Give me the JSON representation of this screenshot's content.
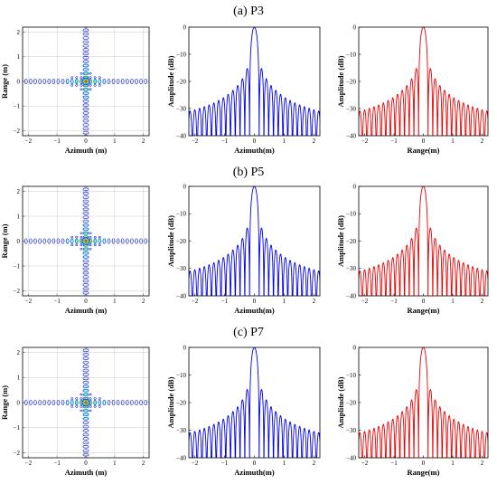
{
  "rows": [
    {
      "title": "(a) P3"
    },
    {
      "title": "(b) P5"
    },
    {
      "title": "(c) P7"
    }
  ],
  "chart_data": [
    {
      "type": "heatmap",
      "panel": "a-contour",
      "xlabel": "Azimuth (m)",
      "ylabel": "Range (m)",
      "xlim": [
        -2.2,
        2.2
      ],
      "ylim": [
        -2.2,
        2.2
      ],
      "xticks": [
        -2,
        -1,
        0,
        1,
        2
      ],
      "yticks": [
        -2,
        -1,
        0,
        1,
        2
      ],
      "grid": true,
      "colors": [
        "#1e2dd2",
        "#13b6f0",
        "#35e07a",
        "#f0c020",
        "#d02010"
      ]
    },
    {
      "type": "line",
      "panel": "a-azimuth",
      "xlabel": "Azimuth(m)",
      "ylabel": "Amplitude (dB)",
      "xlim": [
        -2.2,
        2.2
      ],
      "ylim": [
        -40,
        0
      ],
      "xticks": [
        -2,
        -1,
        0,
        1,
        2
      ],
      "yticks": [
        0,
        -10,
        -20,
        -30,
        -40
      ],
      "series": [
        {
          "color": "#0000ee",
          "mainlobe_width": 0.16,
          "sidelobe_peaks_db": [
            -13,
            -17.5,
            -20.5,
            -22.5,
            -24,
            -25.5,
            -26.5,
            -27.5,
            -28.3,
            -29,
            -29.6,
            -30.2,
            -30.7,
            -31.1
          ]
        }
      ]
    },
    {
      "type": "line",
      "panel": "a-range",
      "xlabel": "Range(m)",
      "ylabel": "Amplitude (dB)",
      "xlim": [
        -2.2,
        2.2
      ],
      "ylim": [
        -40,
        0
      ],
      "xticks": [
        -2,
        -1,
        0,
        1,
        2
      ],
      "yticks": [
        0,
        -10,
        -20,
        -30,
        -40
      ],
      "series": [
        {
          "color": "#ee0000",
          "mainlobe_width": 0.16,
          "sidelobe_peaks_db": [
            -13,
            -17.5,
            -20.5,
            -22.5,
            -24,
            -25.5,
            -26.5,
            -27.5,
            -28.3,
            -29,
            -29.6,
            -30.2,
            -30.7,
            -31.1
          ]
        }
      ]
    },
    {
      "type": "heatmap",
      "panel": "b-contour",
      "xlabel": "Azimuth (m)",
      "ylabel": "Range (m)",
      "xlim": [
        -2.2,
        2.2
      ],
      "ylim": [
        -2.2,
        2.2
      ],
      "xticks": [
        -2,
        -1,
        0,
        1,
        2
      ],
      "yticks": [
        -2,
        -1,
        0,
        1,
        2
      ],
      "grid": true,
      "colors": [
        "#1e2dd2",
        "#13b6f0",
        "#35e07a",
        "#f0c020",
        "#d02010"
      ]
    },
    {
      "type": "line",
      "panel": "b-azimuth",
      "xlabel": "Azimuth(m)",
      "ylabel": "Amplitude (dB)",
      "xlim": [
        -2.2,
        2.2
      ],
      "ylim": [
        -40,
        0
      ],
      "xticks": [
        -2,
        -1,
        0,
        1,
        2
      ],
      "yticks": [
        0,
        -10,
        -20,
        -30,
        -40
      ],
      "series": [
        {
          "color": "#0000ee",
          "mainlobe_width": 0.16,
          "sidelobe_peaks_db": [
            -13,
            -17.5,
            -20.5,
            -22.5,
            -24,
            -25.5,
            -26.5,
            -27.5,
            -28.3,
            -29,
            -29.6,
            -30.2,
            -30.7,
            -31.1
          ]
        }
      ]
    },
    {
      "type": "line",
      "panel": "b-range",
      "xlabel": "Range(m)",
      "ylabel": "Amplitude (dB)",
      "xlim": [
        -2.2,
        2.2
      ],
      "ylim": [
        -40,
        0
      ],
      "xticks": [
        -2,
        -1,
        0,
        1,
        2
      ],
      "yticks": [
        0,
        -10,
        -20,
        -30,
        -40
      ],
      "series": [
        {
          "color": "#ee0000",
          "mainlobe_width": 0.16,
          "sidelobe_peaks_db": [
            -13,
            -17.5,
            -20.5,
            -22.5,
            -24,
            -25.5,
            -26.5,
            -27.5,
            -28.3,
            -29,
            -29.6,
            -30.2,
            -30.7,
            -31.1
          ]
        }
      ]
    },
    {
      "type": "heatmap",
      "panel": "c-contour",
      "xlabel": "Azimuth (m)",
      "ylabel": "Range (m)",
      "xlim": [
        -2.2,
        2.2
      ],
      "ylim": [
        -2.2,
        2.2
      ],
      "xticks": [
        -2,
        -1,
        0,
        1,
        2
      ],
      "yticks": [
        -2,
        -1,
        0,
        1,
        2
      ],
      "grid": true,
      "colors": [
        "#1e2dd2",
        "#13b6f0",
        "#35e07a",
        "#f0c020",
        "#d02010"
      ]
    },
    {
      "type": "line",
      "panel": "c-azimuth",
      "xlabel": "Azimuth(m)",
      "ylabel": "Amplitude (dB)",
      "xlim": [
        -2.2,
        2.2
      ],
      "ylim": [
        -40,
        0
      ],
      "xticks": [
        -2,
        -1,
        0,
        1,
        2
      ],
      "yticks": [
        0,
        -10,
        -20,
        -30,
        -40
      ],
      "series": [
        {
          "color": "#0000ee",
          "mainlobe_width": 0.16,
          "sidelobe_peaks_db": [
            -13,
            -17.5,
            -20.5,
            -22.5,
            -24,
            -25.5,
            -26.5,
            -27.5,
            -28.3,
            -29,
            -29.6,
            -30.2,
            -30.7,
            -31.1
          ]
        }
      ]
    },
    {
      "type": "line",
      "panel": "c-range",
      "xlabel": "Range(m)",
      "ylabel": "Amplitude (dB)",
      "xlim": [
        -2.2,
        2.2
      ],
      "ylim": [
        -40,
        0
      ],
      "xticks": [
        -2,
        -1,
        0,
        1,
        2
      ],
      "yticks": [
        0,
        -10,
        -20,
        -30,
        -40
      ],
      "series": [
        {
          "color": "#ee0000",
          "mainlobe_width": 0.16,
          "sidelobe_peaks_db": [
            -13,
            -17.5,
            -20.5,
            -22.5,
            -24,
            -25.5,
            -26.5,
            -27.5,
            -28.3,
            -29,
            -29.6,
            -30.2,
            -30.7,
            -31.1
          ]
        }
      ]
    }
  ]
}
